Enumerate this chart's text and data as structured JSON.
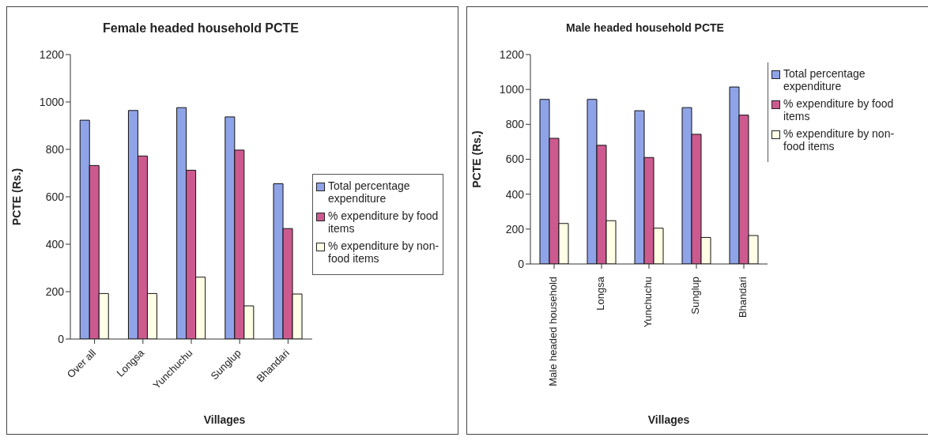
{
  "chart_data": [
    {
      "type": "bar",
      "title": "Female headed household PCTE",
      "xlabel": "Villages",
      "ylabel": "PCTE (Rs.)",
      "categories": [
        "Over all",
        "Longsa",
        "Yunchuchu",
        "Sunglup",
        "Bhandari"
      ],
      "series": [
        {
          "name": "Total percentage expenditure",
          "color": "#8fa3e8",
          "values": [
            923,
            964,
            976,
            937,
            655
          ]
        },
        {
          "name": "% expenditure by food items",
          "color": "#cc5a8f",
          "values": [
            732,
            772,
            712,
            797,
            466
          ]
        },
        {
          "name": "% expenditure by non-food items",
          "color": "#ffffe6",
          "values": [
            192,
            192,
            261,
            140,
            190
          ]
        }
      ],
      "ylim": [
        0,
        1200
      ],
      "yticks": [
        0,
        200,
        400,
        600,
        800,
        1000,
        1200
      ],
      "grid": false,
      "legend": "right"
    },
    {
      "type": "bar",
      "title": "Male headed household PCTE",
      "xlabel": "Villages",
      "ylabel": "PCTE (Rs.)",
      "categories": [
        "Male headed household",
        "Longsa",
        "Yunchuchu",
        "Sunglup",
        "Bhandari"
      ],
      "series": [
        {
          "name": "Total percentage expenditure",
          "color": "#8fa3e8",
          "values": [
            943,
            943,
            878,
            896,
            1014
          ]
        },
        {
          "name": "% expenditure by food items",
          "color": "#cc5a8f",
          "values": [
            720,
            680,
            610,
            743,
            853
          ]
        },
        {
          "name": "% expenditure by non-food items",
          "color": "#ffffe6",
          "values": [
            232,
            248,
            205,
            152,
            163
          ]
        }
      ],
      "ylim": [
        0,
        1200
      ],
      "yticks": [
        0,
        200,
        400,
        600,
        800,
        1000,
        1200
      ],
      "grid": false,
      "legend": "right"
    }
  ]
}
